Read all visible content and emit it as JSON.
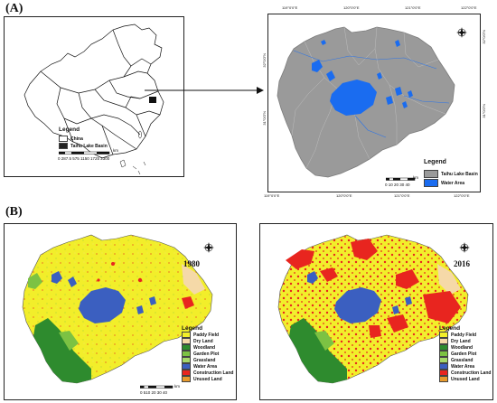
{
  "panel_a": {
    "label": "(A)",
    "china_map": {
      "legend_title": "Legend",
      "legend_items": [
        {
          "label": "China",
          "color": "#ffffff"
        },
        {
          "label": "Taihu Lake Basin",
          "color": "#222222"
        }
      ],
      "scale_numbers": "0 287.5 575      1150     1725    2300",
      "scale_unit": "km"
    },
    "basin_map": {
      "top_ticks": [
        "119°0'0\"E",
        "120°0'0\"E",
        "121°0'0\"E",
        "122°0'0\"E"
      ],
      "bottom_ticks": [
        "119°0'0\"E",
        "120°0'0\"E",
        "121°0'0\"E",
        "122°0'0\"E"
      ],
      "left_ticks": [
        "32°0'0\"N",
        "31°0'0\"N"
      ],
      "right_ticks": [
        "32°0'0\"N",
        "31°0'0\"N"
      ],
      "legend_title": "Legend",
      "legend_items": [
        {
          "label": "Taihu Lake Basin",
          "color": "#9a9a9a"
        },
        {
          "label": "Water Area",
          "color": "#1a6cf0"
        }
      ],
      "scale_numbers": "0  10 20 30 40",
      "scale_unit": "km"
    }
  },
  "panel_b": {
    "label": "(B)",
    "maps": [
      {
        "year": "1980"
      },
      {
        "year": "2016"
      }
    ],
    "legend_title": "Legend",
    "legend_items": [
      {
        "label": "Paddy Field",
        "color": "#f2ee2a"
      },
      {
        "label": "Dry Land",
        "color": "#f5d9a8"
      },
      {
        "label": "Woodland",
        "color": "#2e8b2e"
      },
      {
        "label": "Garden Plot",
        "color": "#7cc243"
      },
      {
        "label": "Grassland",
        "color": "#a6d96a"
      },
      {
        "label": "Water Area",
        "color": "#3b5fc0"
      },
      {
        "label": "Construction Land",
        "color": "#e8251f"
      },
      {
        "label": "Unused Land",
        "color": "#e89a2c"
      }
    ],
    "scale_numbers": "0 510 20  30  40",
    "scale_unit": "km"
  }
}
